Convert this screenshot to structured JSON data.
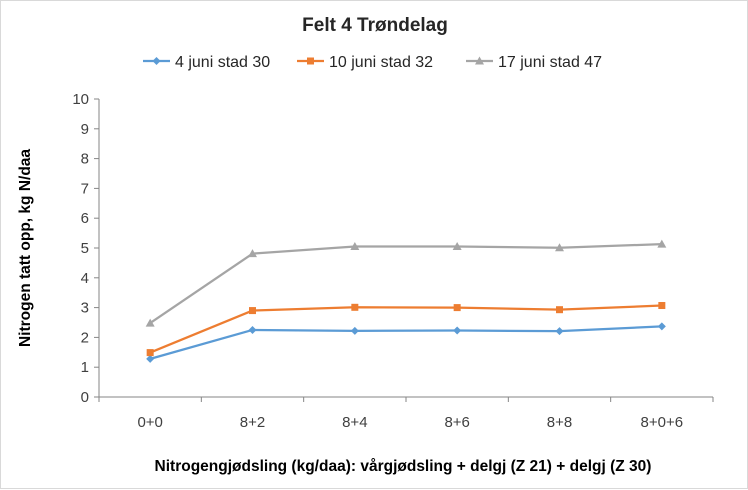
{
  "chart_data": {
    "type": "line",
    "title": "Felt 4 Trøndelag",
    "xlabel": "Nitrogengjødsling (kg/daa): vårgjødsling + delgj (Z 21) + delgj (Z 30)",
    "ylabel": "Nitrogen tatt opp, kg N/daa",
    "ylim": [
      0,
      10
    ],
    "yticks": [
      "0",
      "1",
      "2",
      "3",
      "4",
      "5",
      "6",
      "7",
      "8",
      "9",
      "10"
    ],
    "categories": [
      "0+0",
      "8+2",
      "8+4",
      "8+6",
      "8+8",
      "8+0+6"
    ],
    "legend_position": "top",
    "grid": false,
    "series": [
      {
        "name": "4 juni stad 30",
        "color": "#5b9bd5",
        "marker": "diamond",
        "values": [
          1.28,
          2.25,
          2.22,
          2.23,
          2.21,
          2.37
        ]
      },
      {
        "name": "10 juni stad 32",
        "color": "#ed7d31",
        "marker": "square",
        "values": [
          1.49,
          2.9,
          3.01,
          3.0,
          2.93,
          3.07
        ]
      },
      {
        "name": "17 juni stad 47",
        "color": "#a5a5a5",
        "marker": "triangle",
        "values": [
          2.48,
          4.81,
          5.05,
          5.05,
          5.01,
          5.13
        ]
      }
    ]
  }
}
